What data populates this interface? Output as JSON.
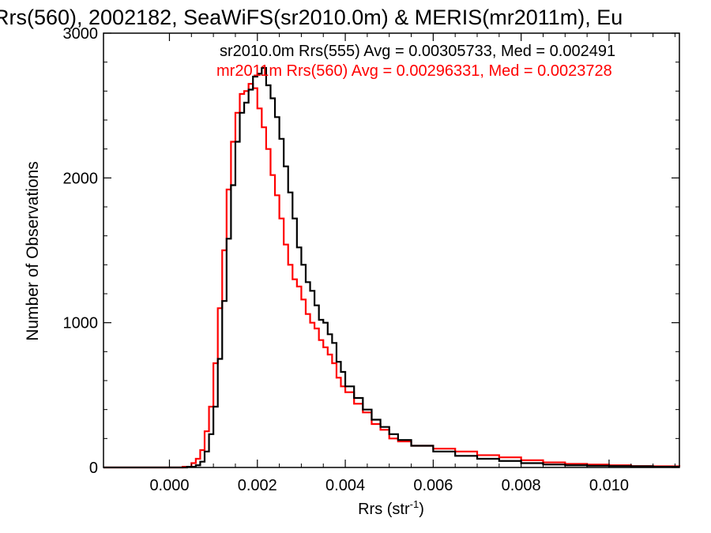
{
  "chart_data": {
    "type": "line",
    "title": "Rrs(560), 2002182, SeaWiFS(sr2010.0m) & MERIS(mr2011m), Eu",
    "xlabel": "Rrs (str",
    "xlabel_sup": "-1",
    "xlabel_tail": ")",
    "ylabel": "Number of Observations",
    "xlim": [
      -0.0015,
      0.0116
    ],
    "ylim": [
      0,
      3000
    ],
    "x_ticks": [
      0.0,
      0.002,
      0.004,
      0.006,
      0.008,
      0.01
    ],
    "x_tick_labels": [
      "0.000",
      "0.002",
      "0.004",
      "0.006",
      "0.008",
      "0.010"
    ],
    "y_ticks": [
      0,
      1000,
      2000,
      3000
    ],
    "y_tick_labels": [
      "0",
      "1000",
      "2000",
      "3000"
    ],
    "grid": false,
    "legend_placement": "top-right",
    "series": [
      {
        "name": "sr2010.0m Rrs(555) Avg = 0.00305733, Med = 0.002491",
        "color": "#000000",
        "step": "post",
        "x": [
          -0.0015,
          0.0004,
          0.0006,
          0.0007,
          0.0008,
          0.0009,
          0.001,
          0.0011,
          0.0012,
          0.0013,
          0.0014,
          0.0015,
          0.0016,
          0.0017,
          0.0018,
          0.0019,
          0.002,
          0.0021,
          0.0022,
          0.0023,
          0.0024,
          0.0025,
          0.0026,
          0.0027,
          0.0028,
          0.0029,
          0.003,
          0.0031,
          0.0032,
          0.0033,
          0.0034,
          0.0035,
          0.0036,
          0.0037,
          0.0038,
          0.0039,
          0.004,
          0.0042,
          0.0044,
          0.0046,
          0.0048,
          0.005,
          0.0052,
          0.0055,
          0.006,
          0.0065,
          0.007,
          0.0075,
          0.008,
          0.0085,
          0.009,
          0.0095,
          0.01,
          0.0105,
          0.011,
          0.0116
        ],
        "y": [
          0,
          5,
          15,
          40,
          110,
          230,
          420,
          750,
          1150,
          1580,
          1950,
          2250,
          2450,
          2520,
          2610,
          2700,
          2720,
          2760,
          2640,
          2550,
          2420,
          2270,
          2080,
          1900,
          1720,
          1520,
          1400,
          1280,
          1220,
          1120,
          1020,
          1000,
          920,
          860,
          730,
          660,
          560,
          480,
          400,
          330,
          280,
          230,
          190,
          150,
          110,
          80,
          60,
          45,
          30,
          20,
          15,
          12,
          10,
          8,
          5,
          5
        ]
      },
      {
        "name": "mr2011m Rrs(560) Avg = 0.00296331, Med = 0.0023728",
        "color": "#ff0000",
        "step": "post",
        "x": [
          -0.0015,
          0.0003,
          0.0005,
          0.0006,
          0.0007,
          0.0008,
          0.0009,
          0.001,
          0.0011,
          0.0012,
          0.0013,
          0.0014,
          0.0015,
          0.0016,
          0.0017,
          0.0018,
          0.0019,
          0.002,
          0.0021,
          0.0022,
          0.0023,
          0.0024,
          0.0025,
          0.0026,
          0.0027,
          0.0028,
          0.0029,
          0.003,
          0.0031,
          0.0032,
          0.0033,
          0.0034,
          0.0035,
          0.0036,
          0.0037,
          0.0038,
          0.0039,
          0.004,
          0.0042,
          0.0044,
          0.0046,
          0.0048,
          0.005,
          0.0052,
          0.0055,
          0.006,
          0.0065,
          0.007,
          0.0075,
          0.008,
          0.0085,
          0.009,
          0.0095,
          0.01,
          0.0105,
          0.011,
          0.0116
        ],
        "y": [
          0,
          5,
          30,
          60,
          120,
          250,
          420,
          720,
          1100,
          1500,
          1920,
          2250,
          2450,
          2580,
          2600,
          2650,
          2620,
          2480,
          2350,
          2200,
          2020,
          1880,
          1720,
          1540,
          1400,
          1300,
          1250,
          1160,
          1060,
          1000,
          960,
          880,
          830,
          780,
          720,
          620,
          560,
          520,
          440,
          380,
          300,
          260,
          200,
          180,
          150,
          130,
          110,
          85,
          70,
          50,
          35,
          25,
          20,
          15,
          10,
          8,
          6
        ]
      }
    ]
  }
}
